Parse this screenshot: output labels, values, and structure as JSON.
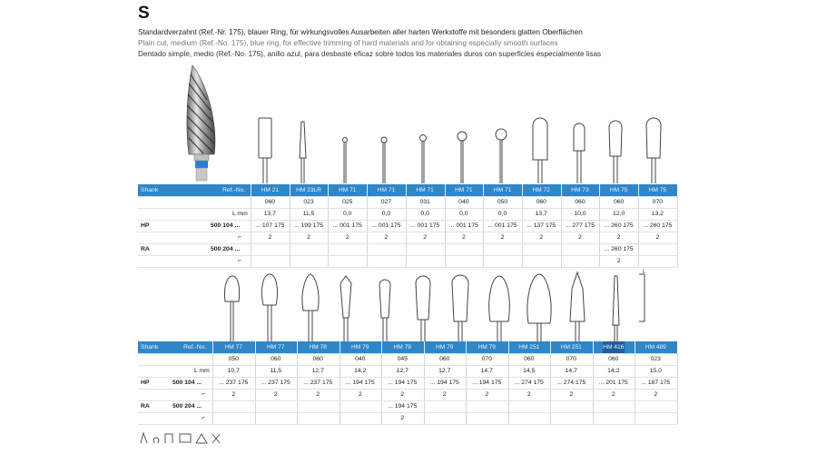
{
  "section_letter": "S",
  "descriptions": {
    "de": "Standardverzahnt (Ref.-Nr. 175), blauer Ring, für wirkungsvolles Ausarbeiten aller harten Werkstoffe mit besonders glatten Oberflächen",
    "en": "Plain cut, medium (Ref.-No. 175), blue ring, for effective trimming of hard materials and for obtaining especially smooth surfaces",
    "es": "Dentado simple, medio (Ref.-No. 175), anillo azul, para desbaste eficaz sobre todos los materiales duros con superficies especialmente lisas"
  },
  "table1": {
    "header_shank": "Shank",
    "header_ref": "Ref.-No.",
    "columns": [
      "HM 21",
      "HM 23LR",
      "HM 71",
      "HM 71",
      "HM 71",
      "HM 71",
      "HM 71",
      "HM 72",
      "HM 73",
      "HM 75",
      "HM 75"
    ],
    "sizes": [
      "060",
      "023",
      "025",
      "027",
      "031",
      "040",
      "050",
      "060",
      "060",
      "060",
      "070"
    ],
    "lmm_label": "L mm",
    "lmm": [
      "13,7",
      "11,5",
      "0,0",
      "0,0",
      "0,0",
      "0,0",
      "0,0",
      "13,7",
      "10,0",
      "12,0",
      "13,2"
    ],
    "hp_label": "HP",
    "hp_ref": "500 104 ...",
    "hp_codes": [
      "... 107 175",
      "... 199 175",
      "... 001 175",
      "... 001 175",
      "... 001 175",
      "... 001 175",
      "... 001 175",
      "... 137 175",
      "... 277 175",
      "... 260 175",
      "... 260 175"
    ],
    "hp_pack": [
      "2",
      "2",
      "2",
      "2",
      "2",
      "2",
      "2",
      "2",
      "2",
      "2",
      "2"
    ],
    "ra_label": "RA",
    "ra_ref": "500 204 ...",
    "ra_codes": [
      "",
      "",
      "",
      "",
      "",
      "",
      "",
      "",
      "",
      "... 260 175",
      ""
    ],
    "ra_pack": [
      "",
      "",
      "",
      "",
      "",
      "",
      "",
      "",
      "",
      "2",
      ""
    ]
  },
  "table2": {
    "header_shank": "Shank",
    "header_ref": "Ref.-No.",
    "columns": [
      "HM 77",
      "HM 77",
      "HM 78",
      "HM 79",
      "HM 79",
      "HM 79",
      "HM 79",
      "HM 251",
      "HM 251",
      "HM 416",
      "HM 489"
    ],
    "sizes": [
      "050",
      "060",
      "060",
      "040",
      "045",
      "060",
      "070",
      "060",
      "070",
      "060",
      "023"
    ],
    "lmm_label": "L mm",
    "lmm": [
      "10,7",
      "11,5",
      "12,7",
      "14,2",
      "12,7",
      "12,7",
      "14,7",
      "14,5",
      "14,7",
      "14,2",
      "15,0"
    ],
    "hp_label": "HP",
    "hp_ref": "500 104 ...",
    "hp_codes": [
      "... 237 175",
      "... 237 175",
      "... 237 175",
      "... 194 175",
      "... 194 175",
      "... 194 175",
      "... 194 175",
      "... 274 175",
      "... 274 175",
      "... 201 175",
      "... 187 175"
    ],
    "hp_pack": [
      "2",
      "2",
      "2",
      "2",
      "2",
      "2",
      "2",
      "2",
      "2",
      "2",
      "2"
    ],
    "ra_label": "RA",
    "ra_ref": "500 204 ...",
    "ra_codes": [
      "",
      "",
      "",
      "",
      "... 194 175",
      "",
      "",
      "",
      "",
      "",
      ""
    ],
    "ra_pack": [
      "",
      "",
      "",
      "",
      "2",
      "",
      "",
      "",
      "",
      "",
      ""
    ]
  },
  "dimension_label": "L",
  "colors": {
    "header_blue": "#2f86c9",
    "ring_blue": "#2b7fd3",
    "highlight": "#1f5f9e"
  }
}
